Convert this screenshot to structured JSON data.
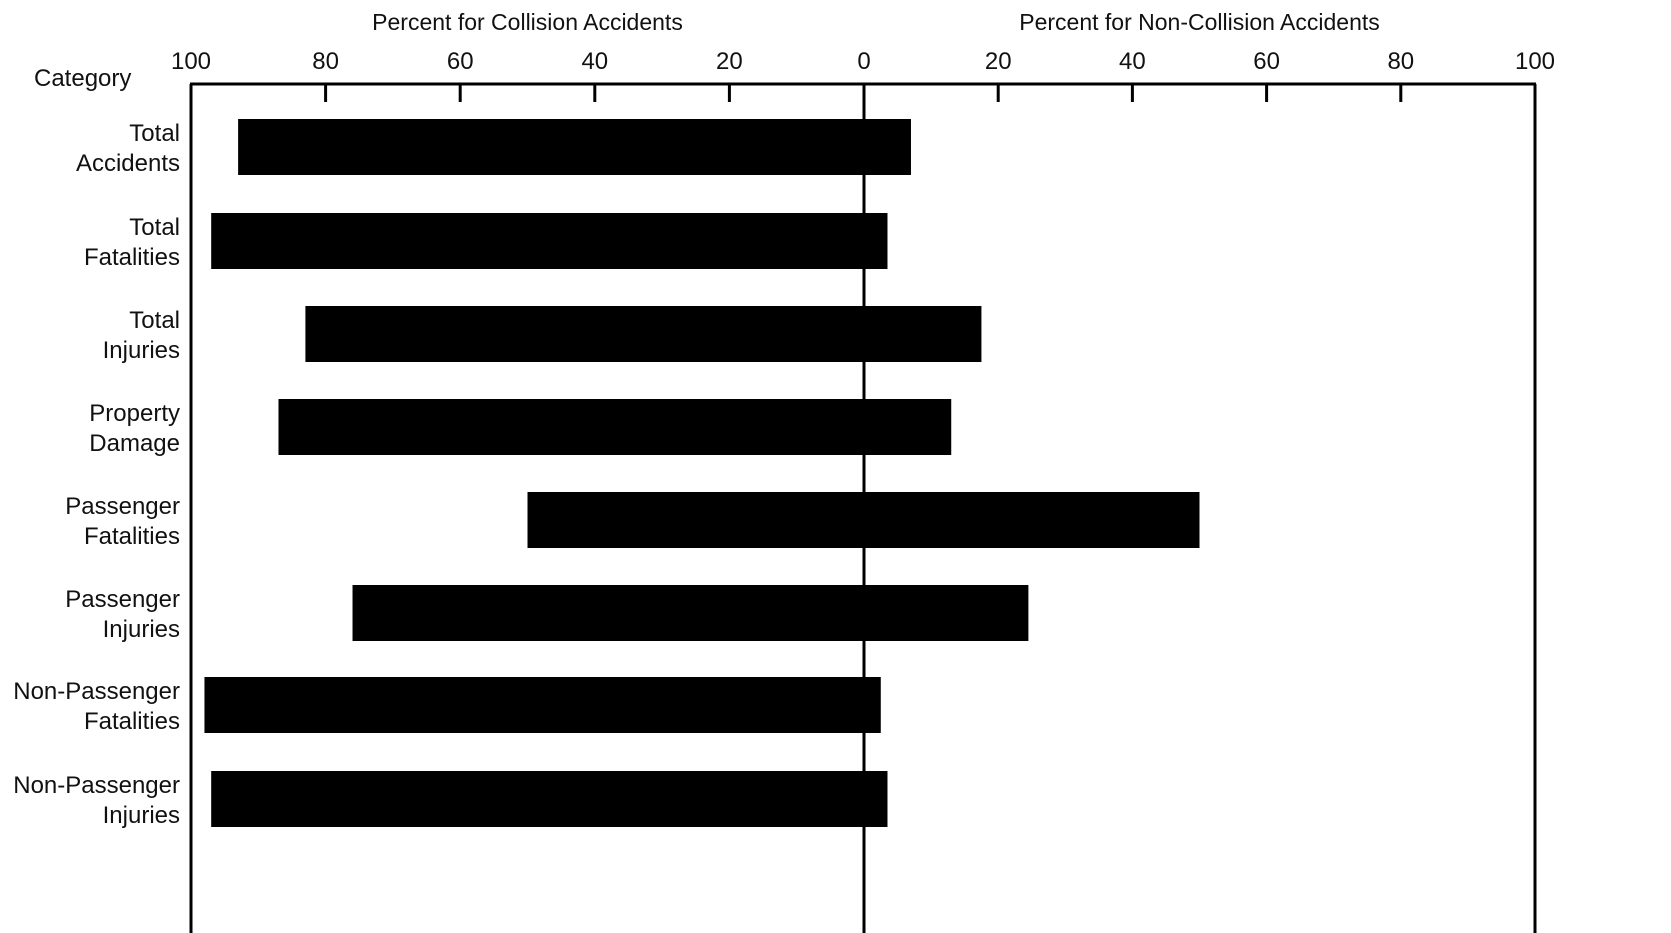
{
  "chart_data": {
    "type": "bar",
    "orientation": "horizontal-diverging",
    "category_header": "Category",
    "x_left_label": "Percent for Collision Accidents",
    "x_right_label": "Percent for Non-Collision Accidents",
    "left_ticks": [
      "100",
      "80",
      "60",
      "40",
      "20"
    ],
    "center_tick": "0",
    "right_ticks": [
      "20",
      "40",
      "60",
      "80",
      "100"
    ],
    "xlim_left": [
      0,
      100
    ],
    "xlim_right": [
      0,
      100
    ],
    "grid": false,
    "bar_color": "#000000",
    "categories": [
      {
        "lines": [
          "Total",
          "Accidents"
        ]
      },
      {
        "lines": [
          "Total",
          "Fatalities"
        ]
      },
      {
        "lines": [
          "Total",
          "Injuries"
        ]
      },
      {
        "lines": [
          "Property",
          "Damage"
        ]
      },
      {
        "lines": [
          "Passenger",
          "Fatalities"
        ]
      },
      {
        "lines": [
          "Passenger",
          "Injuries"
        ]
      },
      {
        "lines": [
          "Non-Passenger",
          "Fatalities"
        ]
      },
      {
        "lines": [
          "Non-Passenger",
          "Injuries"
        ]
      }
    ],
    "series": [
      {
        "values": [
          93,
          97,
          83,
          87,
          50,
          76,
          98,
          97
        ]
      },
      {
        "values": [
          7,
          3.5,
          17.5,
          13,
          50,
          24.5,
          2.5,
          3.5
        ]
      }
    ]
  }
}
